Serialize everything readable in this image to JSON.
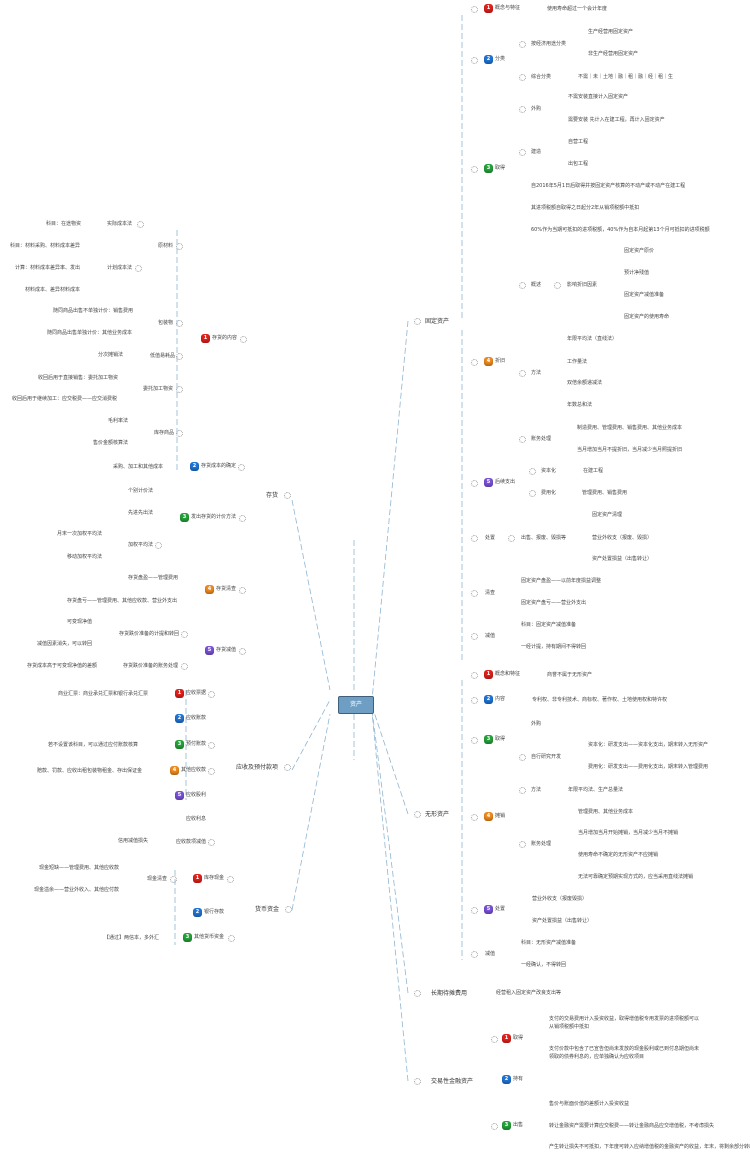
{
  "center": "资产",
  "colors": {
    "red": "#e0201b",
    "blue": "#1f74d6",
    "green": "#25a33a",
    "orange": "#ef8a1e",
    "purple": "#7a52d8",
    "line": "#8fb6d3"
  },
  "fa": {
    "label": "固定资产",
    "c1": {
      "n": "1",
      "label": "概念与特征",
      "t": "使用寿命超过一个会计年度"
    },
    "c2": {
      "n": "2",
      "label": "分类",
      "econ": "按经济用途分类",
      "econ_items": [
        "生产经营用固定资产",
        "非生产经营用固定资产"
      ],
      "comp": "综合分类",
      "comp_t": "不需｜未｜土地｜融｜租｜融｜经｜租｜生"
    },
    "c3": {
      "n": "3",
      "label": "取得",
      "buy": "外购",
      "buy_items": [
        "不需安装直接计入固定资产",
        "需要安装 先计入在建工程，再计入固定资产"
      ],
      "build": "建造",
      "build_items": [
        "自营工程",
        "出包工程"
      ],
      "vat": [
        "自2016年5月1日后取得并按固定资产核算的不动产或不动产在建工程",
        "其进项税额自取得之日起分2年从销项税额中抵扣",
        "60%作为当期可抵扣的进项税额，40%作为自本月起第13个月可抵扣的进项税额"
      ]
    },
    "c4": {
      "n": "4",
      "label": "折旧",
      "overview": "概述",
      "factors": "影响折旧因素",
      "factor_items": [
        "固定资产原价",
        "预计净残值",
        "固定资产减值准备",
        "固定资产的使用寿命"
      ],
      "method": "方法",
      "method_items": [
        "年限平均法（直线法）",
        "工作量法",
        "双倍余额递减法",
        "年数总和法"
      ],
      "acct": "账务处理",
      "acct_items": [
        "制造费用、管理费用、销售费用、其他业务成本",
        "当月增加当月不提折旧，当月减少当月照提折旧"
      ]
    },
    "c5": {
      "n": "5",
      "label": "后续支出",
      "cap": "资本化",
      "cap_t": "在建工程",
      "exp": "费用化",
      "exp_t": "管理费用、销售费用"
    },
    "disposal": {
      "label": "处置",
      "sub": "出售、报废、毁损等",
      "items": [
        "固定资产清理",
        "营业外收支（报废、毁损）",
        "资产处置损益（出售转让）"
      ]
    },
    "count": {
      "label": "清查",
      "items": [
        "固定资产盘盈——以前年度损益调整",
        "固定资产盘亏——营业外支出"
      ]
    },
    "impair": {
      "label": "减值",
      "items": [
        "科目：固定资产减值准备",
        "一经计提，持有期间不得转回"
      ]
    }
  },
  "ia": {
    "label": "无形资产",
    "c1": {
      "n": "1",
      "label": "概念和特征",
      "t": "商誉不属于无形资产"
    },
    "c2": {
      "n": "2",
      "label": "内容",
      "t": "专利权、非专利技术、商标权、著作权、土地使用权和特许权"
    },
    "c3": {
      "n": "3",
      "label": "取得",
      "buy": "外购",
      "rd": "自行研究开发",
      "rd_items": [
        "资本化：研发支出——资本化支出，期末转入无形资产",
        "费用化：研发支出——费用化支出，期末转入管理费用"
      ]
    },
    "c4": {
      "n": "4",
      "label": "摊销",
      "method": "方法",
      "method_t": "年限平均法、生产总量法",
      "acct": "账务处理",
      "acct_items": [
        "管理费用、其他业务成本",
        "当月增加当月开始摊销，当月减少当月不摊销",
        "使用寿命不确定的无形资产不应摊销",
        "无法可靠确定预期实现方式的，应当采用直线法摊销"
      ]
    },
    "c5": {
      "n": "5",
      "label": "处置",
      "items": [
        "营业外收支（报废毁损）",
        "资产处置损益（出售转让）"
      ]
    },
    "impair": {
      "label": "减值",
      "items": [
        "科目：无形资产减值准备",
        "一经确认，不得转回"
      ]
    }
  },
  "ltpe": {
    "label": "长期待摊费用",
    "t": "经营租入固定资产改良支出等"
  },
  "tfa": {
    "label": "交易性金融资产",
    "c1": {
      "n": "1",
      "label": "取得",
      "items": [
        "支付的交易费用计入投资收益，取得增值税专用发票的进项税额可以",
        "从销项税额中抵扣",
        "支付价款中包含了已宣告但尚未发放的现金股利或已到付息期但尚未",
        "领取的债券利息的，应单独确认为应收项目"
      ]
    },
    "c2": {
      "n": "2",
      "label": "持有"
    },
    "c3": {
      "n": "3",
      "label": "出售",
      "items": [
        "售价与账面价值的差额计入投资收益",
        "转让金融资产需要计算应交税费——转让金融商品应交增值税，不考虑损失",
        "产生转让损失不可抵扣，下年度可转入应纳增值税的金融资产的收益，年末，将剩余部分转出"
      ]
    }
  },
  "inv": {
    "label": "存货",
    "c1": {
      "n": "1",
      "label": "存货的内容",
      "raw": "原材料",
      "actual": "实际成本法",
      "actual_t": "科目：在途物资",
      "plan": "计划成本法",
      "plan_items": [
        "科目：材料采购、材料成本差异",
        "计算：材料成本差异率、发出",
        "材料成本、差异材料成本"
      ],
      "pack": "包装物",
      "pack_items": [
        "随同商品出售不单独计价：销售费用",
        "随同商品出售单独计价：其他业务成本"
      ],
      "lv": "低值易耗品",
      "lv_t": "分次摊销法",
      "consign": "委托加工物资",
      "consign_items": [
        "收回后用于直接销售：委托加工物资",
        "收回后用于继续加工：应交税费——应交消费税"
      ],
      "goods": "库存商品",
      "goods_items": [
        "毛利率法",
        "售价金额核算法"
      ]
    },
    "c2": {
      "n": "2",
      "label": "存货成本的确定",
      "t": "采购、加工和其他成本"
    },
    "c3": {
      "n": "3",
      "label": "发出存货的计价方法",
      "items": [
        "个别计价法",
        "先进先出法"
      ],
      "wa": "加权平均法",
      "wa_items": [
        "月末一次加权平均法",
        "移动加权平均法"
      ]
    },
    "c4": {
      "n": "4",
      "label": "存货清查",
      "items": [
        "存货盘盈——管理费用",
        "存货盘亏——管理费用、其他应收款、营业外支出"
      ]
    },
    "c5": {
      "n": "5",
      "label": "存货减值",
      "prov": "存货跌价准备的计提和转回",
      "prov_items": [
        "可变现净值",
        "减值因素消失，可以转回"
      ],
      "acct": "存货跌价准备的账务处理",
      "acct_t": "存货成本高于可变现净值的差额"
    }
  },
  "recv": {
    "label": "应收及预付款项",
    "c1": {
      "n": "1",
      "label": "应收票据",
      "t": "商业汇票：商业承兑汇票和银行承兑汇票"
    },
    "c2": {
      "n": "2",
      "label": "应收账款"
    },
    "c3": {
      "n": "3",
      "label": "预付账款",
      "t": "若不设置该科目，可以通过应付账款核算"
    },
    "c4": {
      "n": "4",
      "label": "其他应收款",
      "t": "赔款、罚款、应收出租包装物租金、存出保证金"
    },
    "c5": {
      "n": "5",
      "label": "应收股利"
    },
    "interest": "应收利息",
    "impair": {
      "label": "应收款项减值",
      "t": "信用减值损失"
    }
  },
  "cash": {
    "label": "货币资金",
    "c1": {
      "n": "1",
      "label": "库存现金",
      "check": "现金清查",
      "items": [
        "现金短缺——管理费用、其他应收款",
        "现金溢余——营业外收入、其他应付款"
      ]
    },
    "c2": {
      "n": "2",
      "label": "银行存款"
    },
    "c3": {
      "n": "3",
      "label": "其他货币资金",
      "t": "【通过】两信本，多外汇"
    }
  }
}
